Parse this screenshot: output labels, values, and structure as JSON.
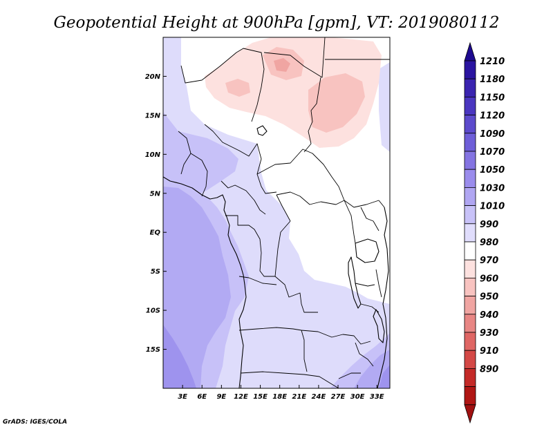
{
  "title": "Geopotential Height at 900hPa [gpm], VT: 2019080112",
  "credit": "GrADS: IGES/COLA",
  "map": {
    "lat_range": [
      -20,
      25
    ],
    "lon_range": [
      0,
      35
    ],
    "lat_ticks": [
      "20N",
      "15N",
      "10N",
      "5N",
      "EQ",
      "5S",
      "10S",
      "15S"
    ],
    "lon_ticks": [
      "3E",
      "6E",
      "9E",
      "12E",
      "15E",
      "18E",
      "21E",
      "24E",
      "27E",
      "30E",
      "33E"
    ]
  },
  "colorbar": {
    "labels": [
      "1210",
      "1180",
      "1150",
      "1120",
      "1090",
      "1070",
      "1050",
      "1030",
      "1010",
      "990",
      "980",
      "970",
      "960",
      "950",
      "940",
      "930",
      "910",
      "890"
    ],
    "colors": [
      "#2a14a0",
      "#3a24b0",
      "#4a36c0",
      "#5c4acc",
      "#6e5ed8",
      "#8474e2",
      "#9a8cec",
      "#b0a6f2",
      "#c8c2f8",
      "#e0ddfc",
      "#ffffff",
      "#fde1df",
      "#f8c3c0",
      "#f0a5a2",
      "#e88684",
      "#df6664",
      "#d44846",
      "#c42a28",
      "#b01614"
    ],
    "top_arrow_color": "#1e0a90",
    "bottom_arrow_color": "#a01010"
  }
}
